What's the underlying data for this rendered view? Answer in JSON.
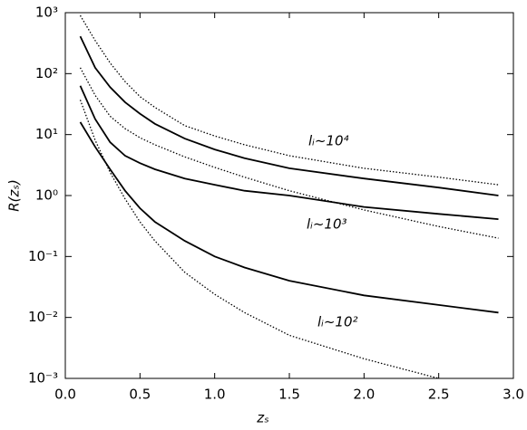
{
  "chart_data": {
    "type": "line",
    "x_label": "zₛ",
    "y_label": "R(zₛ)",
    "log_y": true,
    "xlim": [
      0,
      3
    ],
    "ylim": [
      0.001,
      1000
    ],
    "xticks": [
      {
        "value": 0,
        "label": "0.0"
      },
      0.5,
      {
        "value": 1,
        "label": "1.0"
      },
      1.5,
      {
        "value": 2,
        "label": "2.0"
      },
      2.5,
      {
        "value": 3,
        "label": "3.0"
      }
    ],
    "yticks": [
      {
        "value": 0.001,
        "label": "10⁻³"
      },
      {
        "value": 0.01,
        "label": "10⁻²"
      },
      {
        "value": 0.1,
        "label": "10⁻¹"
      },
      {
        "value": 1,
        "label": "10⁰"
      },
      {
        "value": 10,
        "label": "10¹"
      },
      {
        "value": 100,
        "label": "10²"
      },
      {
        "value": 1000,
        "label": "10³"
      }
    ],
    "x": [
      0.1,
      0.2,
      0.3,
      0.4,
      0.5,
      0.6,
      0.8,
      1.0,
      1.2,
      1.5,
      2.0,
      2.5,
      2.9
    ],
    "series": [
      {
        "color": "#000000",
        "style": "dotted",
        "values": [
          900,
          350,
          150,
          74,
          42,
          28,
          14,
          9.5,
          6.8,
          4.5,
          2.8,
          2.0,
          1.5
        ]
      },
      {
        "color": "#000000",
        "style": "solid",
        "values": [
          410,
          125,
          60,
          34,
          22,
          15,
          8.6,
          5.7,
          4.1,
          2.8,
          1.9,
          1.35,
          1.0
        ]
      },
      {
        "color": "#000000",
        "style": "dotted",
        "values": [
          125,
          44,
          20,
          12.5,
          8.9,
          6.8,
          4.3,
          2.9,
          2.0,
          1.2,
          0.58,
          0.31,
          0.2
        ]
      },
      {
        "color": "#000000",
        "style": "solid",
        "values": [
          63,
          18,
          7.5,
          4.5,
          3.4,
          2.7,
          1.9,
          1.5,
          1.2,
          1.0,
          0.65,
          0.5,
          0.41
        ]
      },
      {
        "color": "#000000",
        "style": "solid",
        "values": [
          16,
          6.3,
          2.7,
          1.2,
          0.62,
          0.37,
          0.18,
          0.1,
          0.066,
          0.04,
          0.023,
          0.016,
          0.012
        ]
      },
      {
        "color": "#000000",
        "style": "dotted",
        "values": [
          37,
          8.1,
          2.4,
          0.88,
          0.37,
          0.18,
          0.055,
          0.024,
          0.012,
          0.0051,
          0.0021,
          0.001,
          null
        ]
      }
    ],
    "annotations": [
      "lᵢ~10⁴",
      "lᵢ~10³",
      "lᵢ~10²"
    ]
  }
}
